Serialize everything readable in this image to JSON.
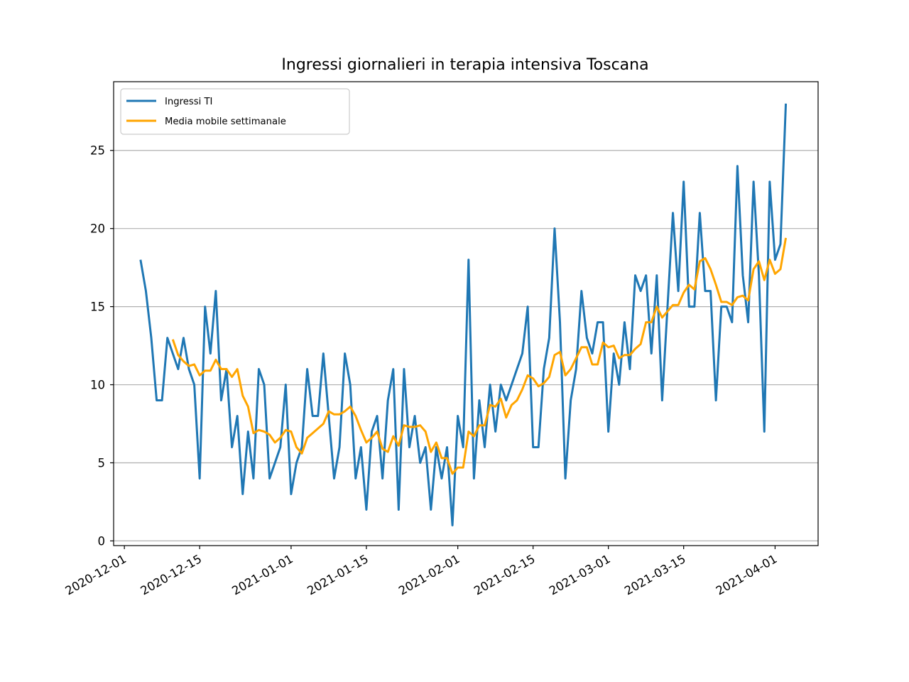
{
  "chart_data": {
    "type": "line",
    "title": "Ingressi giornalieri in terapia intensiva Toscana",
    "xlabel": "",
    "ylabel": "",
    "x_start": "2020-12-04",
    "x_step_days": 1,
    "xlim": [
      "2020-11-29",
      "2021-04-09"
    ],
    "ylim": [
      -0.3,
      29.4
    ],
    "x_ticks": [
      "2020-12-01",
      "2020-12-15",
      "2021-01-01",
      "2021-01-15",
      "2021-02-01",
      "2021-02-15",
      "2021-03-01",
      "2021-03-15",
      "2021-04-01"
    ],
    "y_ticks": [
      0,
      5,
      10,
      15,
      20,
      25
    ],
    "grid": "horizontal",
    "legend_position": "upper-left",
    "series": [
      {
        "name": "Ingressi TI",
        "color": "#1f77b4",
        "values": [
          18,
          16,
          13,
          9,
          9,
          13,
          12,
          11,
          13,
          11,
          10,
          4,
          15,
          12,
          16,
          9,
          11,
          6,
          8,
          3,
          7,
          4,
          11,
          10,
          4,
          5,
          6,
          10,
          3,
          5,
          6,
          11,
          8,
          8,
          12,
          8,
          4,
          6,
          12,
          10,
          4,
          6,
          2,
          7,
          8,
          4,
          9,
          11,
          2,
          11,
          6,
          8,
          5,
          6,
          2,
          6,
          4,
          6,
          1,
          8,
          6,
          18,
          4,
          9,
          6,
          10,
          7,
          10,
          9,
          10,
          11,
          12,
          15,
          6,
          6,
          11,
          13,
          20,
          14,
          4,
          9,
          11,
          16,
          13,
          12,
          14,
          14,
          7,
          12,
          10,
          14,
          11,
          17,
          16,
          17,
          12,
          17,
          9,
          15,
          21,
          16,
          23,
          15,
          15,
          21,
          16,
          16,
          9,
          15,
          15,
          14,
          24,
          17,
          14,
          23,
          17,
          7,
          23,
          18,
          19,
          28
        ]
      },
      {
        "name": "Media mobile settimanale",
        "color": "#ffa500",
        "start_index": 6,
        "values": [
          12.9,
          11.9,
          11.5,
          11.2,
          11.3,
          10.6,
          10.9,
          10.9,
          11.6,
          11.0,
          11.0,
          10.5,
          11.0,
          9.3,
          8.6,
          6.9,
          7.1,
          7.0,
          6.8,
          6.3,
          6.6,
          7.1,
          7.0,
          6.0,
          5.6,
          6.6,
          6.9,
          7.2,
          7.5,
          8.3,
          8.1,
          8.1,
          8.3,
          8.6,
          8.0,
          7.1,
          6.3,
          6.6,
          7.0,
          5.9,
          5.7,
          6.7,
          6.1,
          7.4,
          7.3,
          7.3,
          7.4,
          7.0,
          5.7,
          6.3,
          5.3,
          5.3,
          4.3,
          4.7,
          4.7,
          7.0,
          6.7,
          7.4,
          7.4,
          8.7,
          8.6,
          9.1,
          7.9,
          8.7,
          9.0,
          9.7,
          10.6,
          10.4,
          9.9,
          10.1,
          10.5,
          11.9,
          12.1,
          10.6,
          11.0,
          11.7,
          12.4,
          12.4,
          11.3,
          11.3,
          12.7,
          12.4,
          12.5,
          11.7,
          11.9,
          11.9,
          12.3,
          12.6,
          14.0,
          14.0,
          15.0,
          14.3,
          14.7,
          15.1,
          15.1,
          15.9,
          16.4,
          16.1,
          17.9,
          18.1,
          17.4,
          16.4,
          15.3,
          15.3,
          15.1,
          15.6,
          15.7,
          15.4,
          17.4,
          17.9,
          16.7,
          18.0,
          17.1,
          17.4,
          19.4
        ]
      }
    ]
  }
}
